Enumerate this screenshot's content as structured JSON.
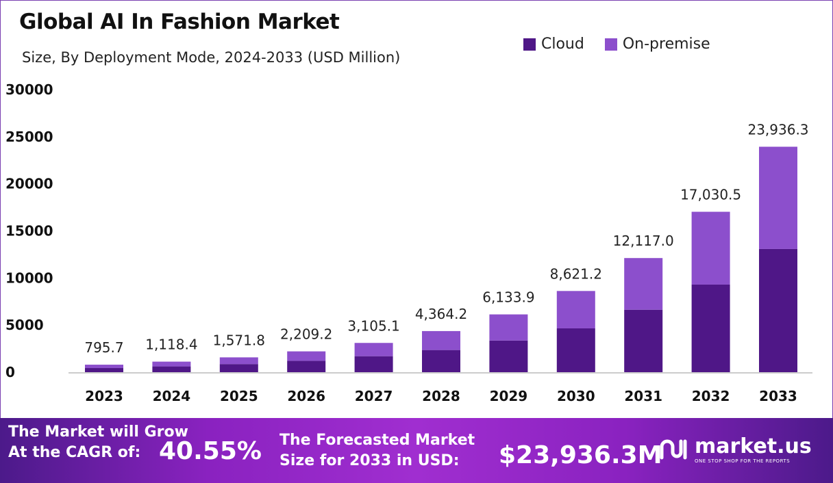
{
  "chart_data": {
    "type": "bar",
    "stacked": true,
    "title": "Global AI In Fashion Market",
    "subtitle": "Size, By Deployment Mode, 2024-2033 (USD Million)",
    "categories": [
      "2023",
      "2024",
      "2025",
      "2026",
      "2027",
      "2028",
      "2029",
      "2030",
      "2031",
      "2032",
      "2033"
    ],
    "series": [
      {
        "name": "Cloud",
        "color": "#4f1787",
        "values": [
          435,
          611,
          858,
          1206,
          1695,
          2350,
          3360,
          4650,
          6630,
          9300,
          13080
        ]
      },
      {
        "name": "On-premise",
        "color": "#8c4fcc",
        "values": [
          360.7,
          507.4,
          713.8,
          1003.2,
          1410.1,
          2014.2,
          2773.9,
          3971.2,
          5487.0,
          7730.5,
          10856.3
        ]
      }
    ],
    "totals_labels": [
      "795.7",
      "1,118.4",
      "1,571.8",
      "2,209.2",
      "3,105.1",
      "4,364.2",
      "6,133.9",
      "8,621.2",
      "12,117.0",
      "17,030.5",
      "23,936.3"
    ],
    "totals": [
      795.7,
      1118.4,
      1571.8,
      2209.2,
      3105.1,
      4364.2,
      6133.9,
      8621.2,
      12117.0,
      17030.5,
      23936.3
    ],
    "yticks": [
      "0",
      "5000",
      "10000",
      "15000",
      "20000",
      "25000",
      "30000"
    ],
    "ylim": [
      0,
      30000
    ],
    "grid": false,
    "legend": "top-right"
  },
  "footer": {
    "cagr_label_1": "The Market will Grow",
    "cagr_label_2": "At the CAGR of:",
    "cagr_value": "40.55%",
    "forecast_label_1": "The Forecasted Market",
    "forecast_label_2": "Size for 2033 in USD:",
    "forecast_value": "$23,936.3M",
    "logo_text": "market.us",
    "logo_tagline": "ONE STOP SHOP FOR THE REPORTS"
  }
}
